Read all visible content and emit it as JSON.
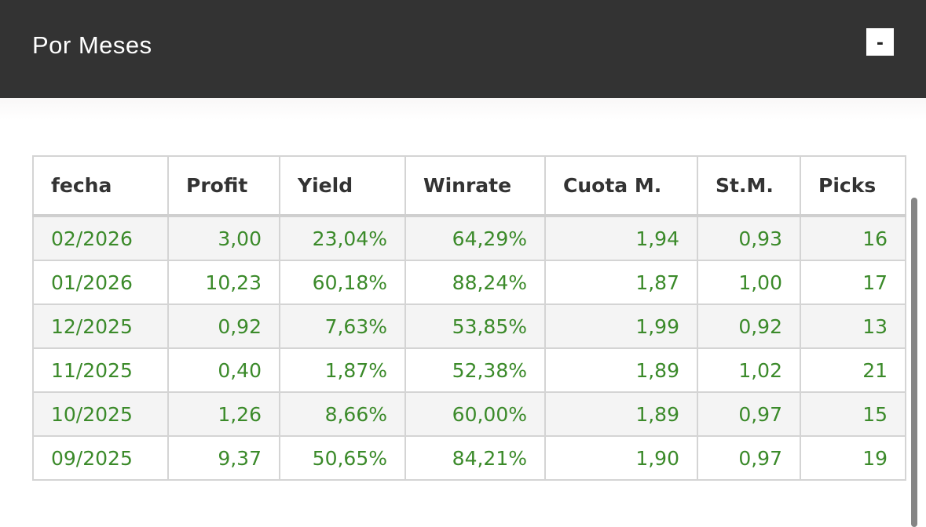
{
  "header": {
    "title": "Por Meses",
    "collapse_label": "-"
  },
  "table": {
    "columns": [
      "fecha",
      "Profit",
      "Yield",
      "Winrate",
      "Cuota M.",
      "St.M.",
      "Picks"
    ],
    "rows": [
      [
        "02/2026",
        "3,00",
        "23,04%",
        "64,29%",
        "1,94",
        "0,93",
        "16"
      ],
      [
        "01/2026",
        "10,23",
        "60,18%",
        "88,24%",
        "1,87",
        "1,00",
        "17"
      ],
      [
        "12/2025",
        "0,92",
        "7,63%",
        "53,85%",
        "1,99",
        "0,92",
        "13"
      ],
      [
        "11/2025",
        "0,40",
        "1,87%",
        "52,38%",
        "1,89",
        "1,02",
        "21"
      ],
      [
        "10/2025",
        "1,26",
        "8,66%",
        "60,00%",
        "1,89",
        "0,97",
        "15"
      ],
      [
        "09/2025",
        "9,37",
        "50,65%",
        "84,21%",
        "1,90",
        "0,97",
        "19"
      ]
    ]
  },
  "colors": {
    "header_bg": "#333333",
    "value_text": "#3b8a2a",
    "row_alt": "#f4f4f4"
  }
}
